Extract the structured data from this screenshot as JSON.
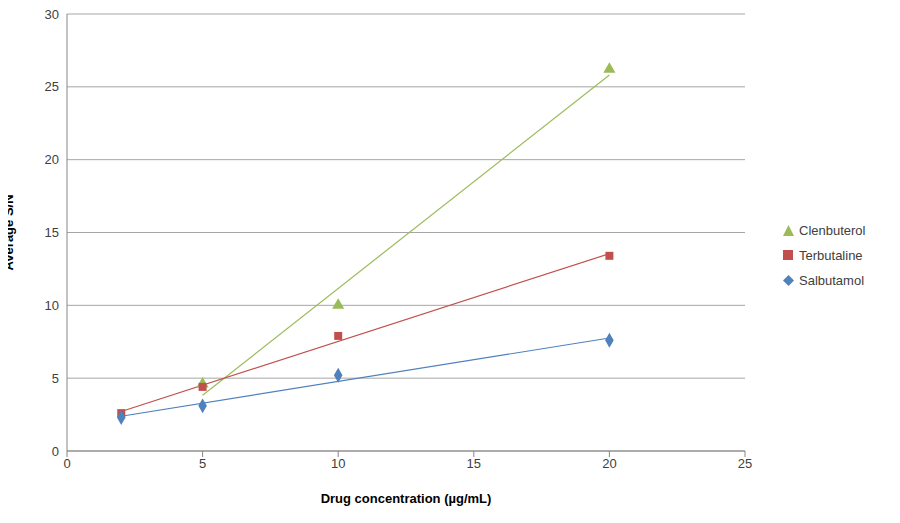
{
  "chart_data": {
    "type": "scatter",
    "x_label": "Drug concentration (µg/mL)",
    "y_label": "Average S/N",
    "xlim": [
      0,
      25
    ],
    "xticks": [
      0,
      5,
      10,
      15,
      20,
      25
    ],
    "ylim": [
      0,
      30
    ],
    "yticks": [
      0,
      5,
      10,
      15,
      20,
      25,
      30
    ],
    "grid": true,
    "legend": "right",
    "series": [
      {
        "name": "Clenbuterol",
        "color": "#9bbb59",
        "marker": "triangle",
        "line_style": "trendline",
        "x": [
          5,
          10,
          20
        ],
        "values": [
          4.6,
          10,
          26.2
        ]
      },
      {
        "name": "Terbutaline",
        "color": "#c0504d",
        "marker": "square",
        "line_style": "trendline",
        "x": [
          2,
          5,
          10,
          20
        ],
        "values": [
          2.6,
          4.4,
          7.9,
          13.4
        ]
      },
      {
        "name": "Salbutamol",
        "color": "#4f81bd",
        "marker": "diamond",
        "line_style": "trendline",
        "x": [
          2,
          5,
          10,
          20
        ],
        "values": [
          2.3,
          3.1,
          5.2,
          7.6
        ]
      }
    ]
  }
}
